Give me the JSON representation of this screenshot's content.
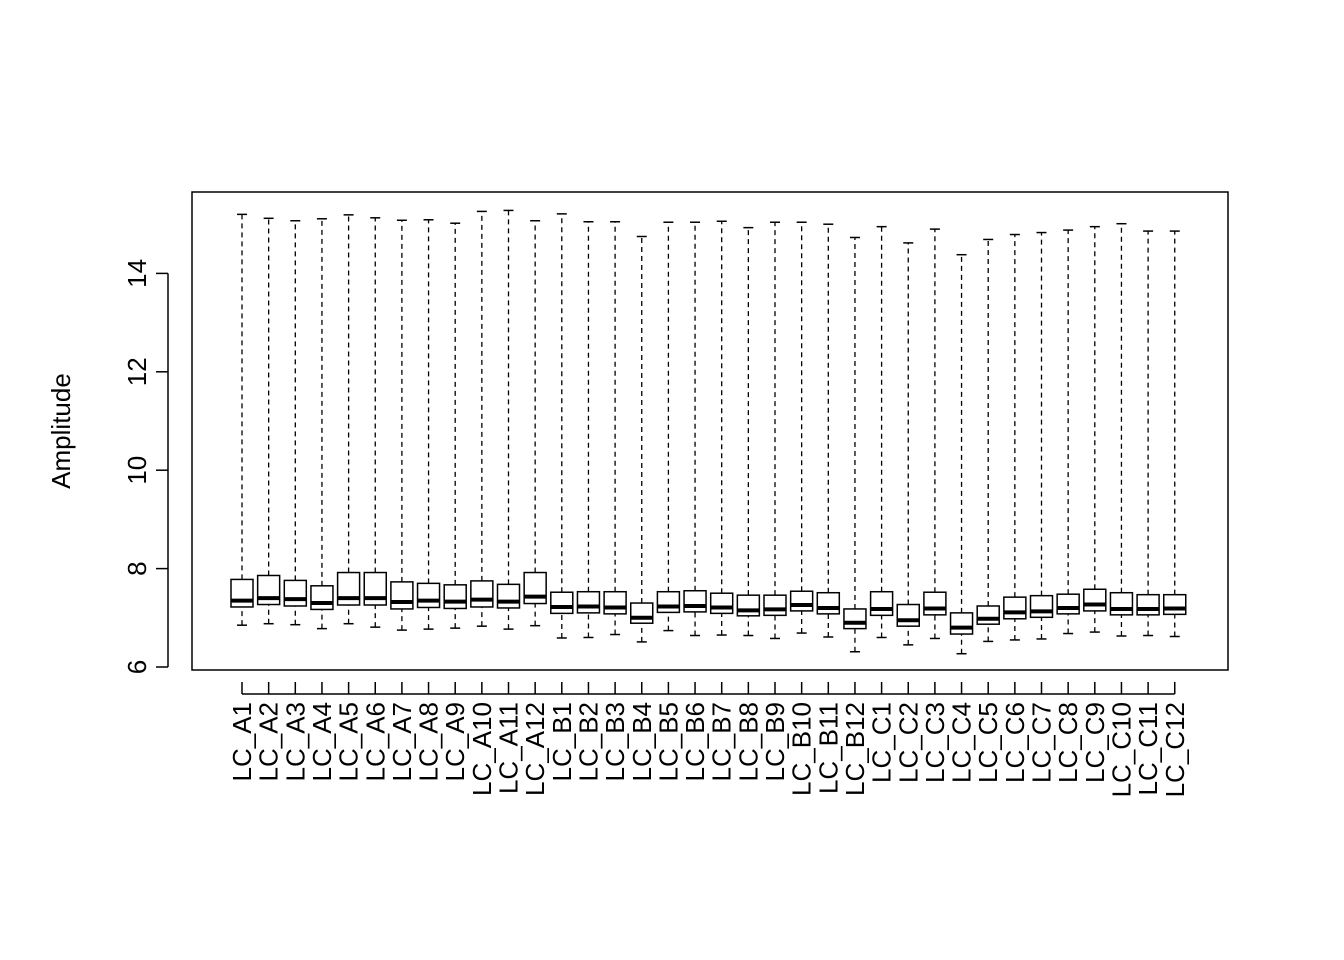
{
  "chart_data": {
    "type": "boxplot",
    "title": "",
    "xlabel": "",
    "ylabel": "Amplitude",
    "ylim": [
      6,
      15.3
    ],
    "yticks": [
      6,
      8,
      10,
      12,
      14
    ],
    "categories": [
      "LC_A1",
      "LC_A2",
      "LC_A3",
      "LC_A4",
      "LC_A5",
      "LC_A6",
      "LC_A7",
      "LC_A8",
      "LC_A9",
      "LC_A10",
      "LC_A11",
      "LC_A12",
      "LC_B1",
      "LC_B2",
      "LC_B3",
      "LC_B4",
      "LC_B5",
      "LC_B6",
      "LC_B7",
      "LC_B8",
      "LC_B9",
      "LC_B10",
      "LC_B11",
      "LC_B12",
      "LC_C1",
      "LC_C2",
      "LC_C3",
      "LC_C4",
      "LC_C5",
      "LC_C6",
      "LC_C7",
      "LC_C8",
      "LC_C9",
      "LC_C10",
      "LC_C11",
      "LC_C12"
    ],
    "boxes": [
      {
        "min": 6.85,
        "q1": 7.22,
        "median": 7.35,
        "q3": 7.78,
        "max": 15.2
      },
      {
        "min": 6.88,
        "q1": 7.27,
        "median": 7.4,
        "q3": 7.86,
        "max": 15.12
      },
      {
        "min": 6.86,
        "q1": 7.24,
        "median": 7.38,
        "q3": 7.76,
        "max": 15.07
      },
      {
        "min": 6.78,
        "q1": 7.17,
        "median": 7.3,
        "q3": 7.65,
        "max": 15.11
      },
      {
        "min": 6.88,
        "q1": 7.26,
        "median": 7.4,
        "q3": 7.92,
        "max": 15.19
      },
      {
        "min": 6.81,
        "q1": 7.26,
        "median": 7.4,
        "q3": 7.92,
        "max": 15.13
      },
      {
        "min": 6.75,
        "q1": 7.18,
        "median": 7.32,
        "q3": 7.73,
        "max": 15.08
      },
      {
        "min": 6.77,
        "q1": 7.21,
        "median": 7.35,
        "q3": 7.7,
        "max": 15.09
      },
      {
        "min": 6.79,
        "q1": 7.19,
        "median": 7.33,
        "q3": 7.67,
        "max": 15.02
      },
      {
        "min": 6.83,
        "q1": 7.22,
        "median": 7.37,
        "q3": 7.75,
        "max": 15.26
      },
      {
        "min": 6.77,
        "q1": 7.2,
        "median": 7.33,
        "q3": 7.68,
        "max": 15.28
      },
      {
        "min": 6.84,
        "q1": 7.29,
        "median": 7.43,
        "q3": 7.92,
        "max": 15.07
      },
      {
        "min": 6.59,
        "q1": 7.09,
        "median": 7.22,
        "q3": 7.52,
        "max": 15.21
      },
      {
        "min": 6.6,
        "q1": 7.1,
        "median": 7.23,
        "q3": 7.53,
        "max": 15.05
      },
      {
        "min": 6.66,
        "q1": 7.08,
        "median": 7.21,
        "q3": 7.53,
        "max": 15.05
      },
      {
        "min": 6.51,
        "q1": 6.89,
        "median": 7.0,
        "q3": 7.3,
        "max": 14.75
      },
      {
        "min": 6.74,
        "q1": 7.11,
        "median": 7.23,
        "q3": 7.53,
        "max": 15.04
      },
      {
        "min": 6.64,
        "q1": 7.12,
        "median": 7.24,
        "q3": 7.55,
        "max": 15.04
      },
      {
        "min": 6.65,
        "q1": 7.09,
        "median": 7.21,
        "q3": 7.5,
        "max": 15.06
      },
      {
        "min": 6.64,
        "q1": 7.04,
        "median": 7.15,
        "q3": 7.46,
        "max": 14.93
      },
      {
        "min": 6.58,
        "q1": 7.05,
        "median": 7.17,
        "q3": 7.46,
        "max": 15.04
      },
      {
        "min": 6.69,
        "q1": 7.14,
        "median": 7.26,
        "q3": 7.54,
        "max": 15.04
      },
      {
        "min": 6.61,
        "q1": 7.08,
        "median": 7.2,
        "q3": 7.51,
        "max": 15.0
      },
      {
        "min": 6.31,
        "q1": 6.78,
        "median": 6.9,
        "q3": 7.18,
        "max": 14.73
      },
      {
        "min": 6.6,
        "q1": 7.05,
        "median": 7.18,
        "q3": 7.53,
        "max": 14.95
      },
      {
        "min": 6.45,
        "q1": 6.83,
        "median": 6.95,
        "q3": 7.27,
        "max": 14.62
      },
      {
        "min": 6.58,
        "q1": 7.06,
        "median": 7.19,
        "q3": 7.52,
        "max": 14.9
      },
      {
        "min": 6.27,
        "q1": 6.67,
        "median": 6.8,
        "q3": 7.1,
        "max": 14.38
      },
      {
        "min": 6.52,
        "q1": 6.87,
        "median": 6.98,
        "q3": 7.24,
        "max": 14.69
      },
      {
        "min": 6.55,
        "q1": 6.98,
        "median": 7.11,
        "q3": 7.42,
        "max": 14.79
      },
      {
        "min": 6.57,
        "q1": 7.01,
        "median": 7.13,
        "q3": 7.45,
        "max": 14.83
      },
      {
        "min": 6.68,
        "q1": 7.08,
        "median": 7.2,
        "q3": 7.48,
        "max": 14.88
      },
      {
        "min": 6.71,
        "q1": 7.14,
        "median": 7.27,
        "q3": 7.58,
        "max": 14.95
      },
      {
        "min": 6.63,
        "q1": 7.06,
        "median": 7.18,
        "q3": 7.51,
        "max": 15.01
      },
      {
        "min": 6.64,
        "q1": 7.06,
        "median": 7.18,
        "q3": 7.47,
        "max": 14.86
      },
      {
        "min": 6.62,
        "q1": 7.07,
        "median": 7.19,
        "q3": 7.47,
        "max": 14.86
      }
    ],
    "grid": false,
    "legend": "none"
  }
}
